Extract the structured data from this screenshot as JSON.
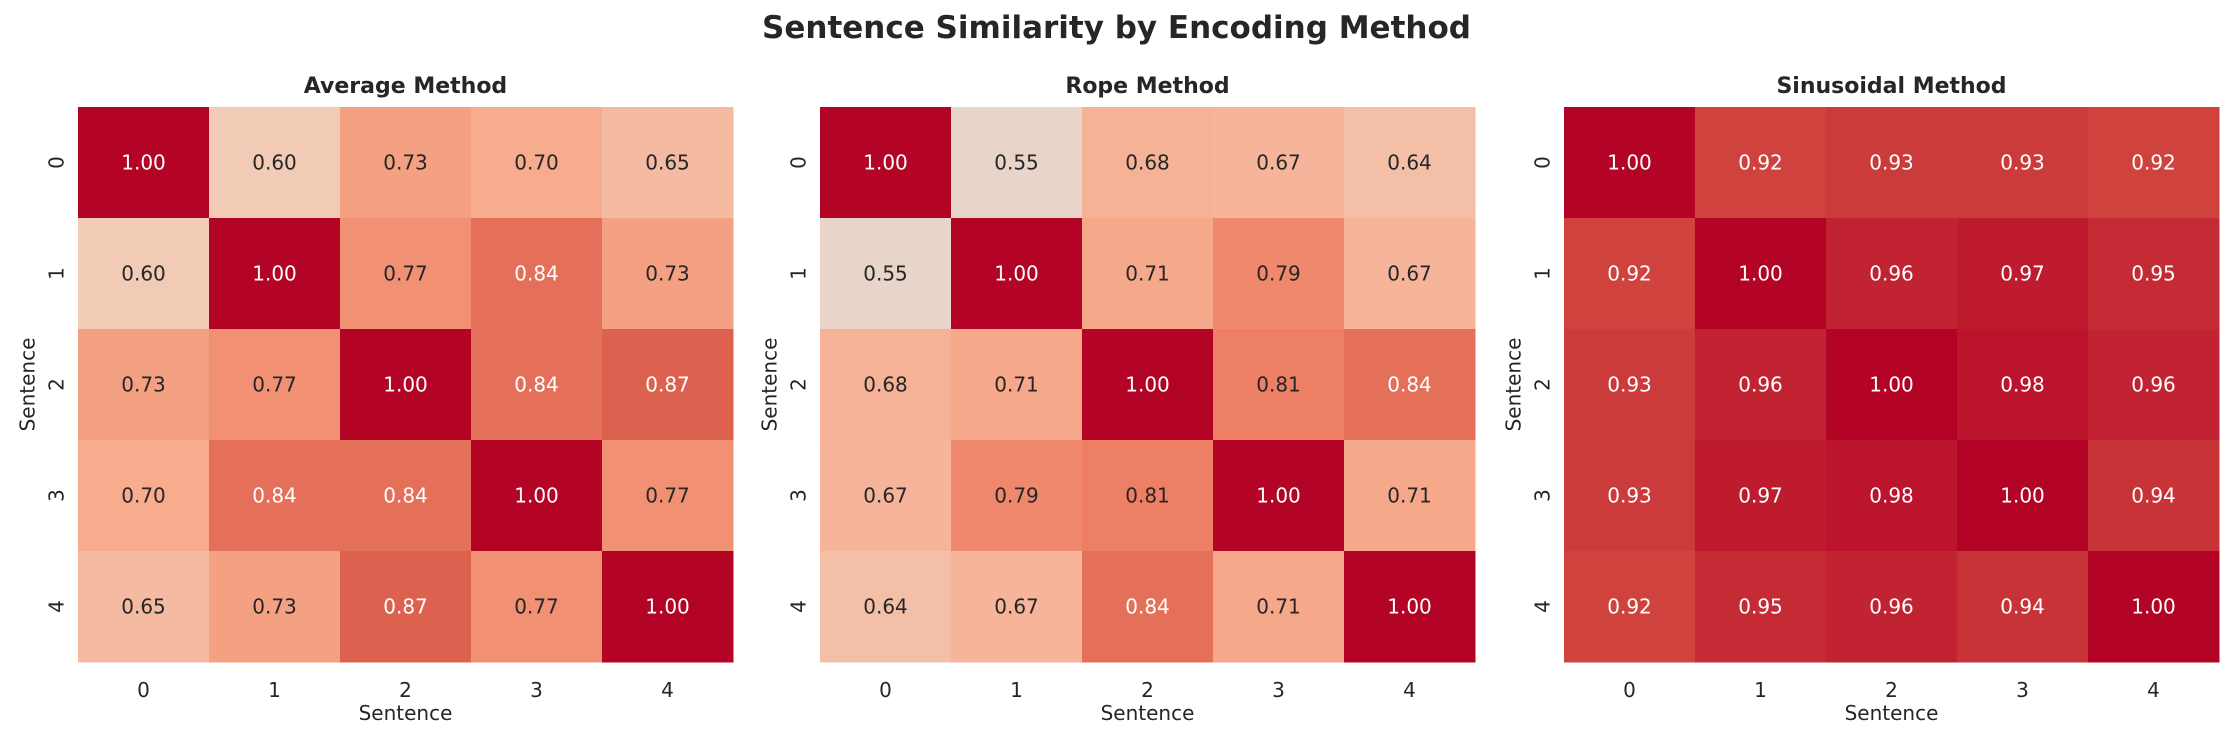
{
  "chart_data": [
    {
      "type": "heatmap",
      "title": "Average Method",
      "xlabel": "Sentence",
      "ylabel": "Sentence",
      "x_ticks": [
        "0",
        "1",
        "2",
        "3",
        "4"
      ],
      "y_ticks": [
        "0",
        "1",
        "2",
        "3",
        "4"
      ],
      "colormap": "coolwarm",
      "color_range": [
        0,
        1
      ],
      "colorbar": false,
      "values": [
        [
          1.0,
          0.6,
          0.73,
          0.7,
          0.65
        ],
        [
          0.6,
          1.0,
          0.77,
          0.84,
          0.73
        ],
        [
          0.73,
          0.77,
          1.0,
          0.84,
          0.87
        ],
        [
          0.7,
          0.84,
          0.84,
          1.0,
          0.77
        ],
        [
          0.65,
          0.73,
          0.87,
          0.77,
          1.0
        ]
      ]
    },
    {
      "type": "heatmap",
      "title": "Rope Method",
      "xlabel": "Sentence",
      "ylabel": "Sentence",
      "x_ticks": [
        "0",
        "1",
        "2",
        "3",
        "4"
      ],
      "y_ticks": [
        "0",
        "1",
        "2",
        "3",
        "4"
      ],
      "colormap": "coolwarm",
      "color_range": [
        0,
        1
      ],
      "colorbar": false,
      "values": [
        [
          1.0,
          0.55,
          0.68,
          0.67,
          0.64
        ],
        [
          0.55,
          1.0,
          0.71,
          0.79,
          0.67
        ],
        [
          0.68,
          0.71,
          1.0,
          0.81,
          0.84
        ],
        [
          0.67,
          0.79,
          0.81,
          1.0,
          0.71
        ],
        [
          0.64,
          0.67,
          0.84,
          0.71,
          1.0
        ]
      ]
    },
    {
      "type": "heatmap",
      "title": "Sinusoidal Method",
      "xlabel": "Sentence",
      "ylabel": "Sentence",
      "x_ticks": [
        "0",
        "1",
        "2",
        "3",
        "4"
      ],
      "y_ticks": [
        "0",
        "1",
        "2",
        "3",
        "4"
      ],
      "colormap": "coolwarm",
      "color_range": [
        0,
        1
      ],
      "colorbar": false,
      "values": [
        [
          1.0,
          0.92,
          0.93,
          0.93,
          0.92
        ],
        [
          0.92,
          1.0,
          0.96,
          0.97,
          0.95
        ],
        [
          0.93,
          0.96,
          1.0,
          0.98,
          0.96
        ],
        [
          0.93,
          0.97,
          0.98,
          1.0,
          0.94
        ],
        [
          0.92,
          0.95,
          0.96,
          0.94,
          1.0
        ]
      ]
    }
  ],
  "suptitle": "Sentence Similarity by Encoding Method"
}
